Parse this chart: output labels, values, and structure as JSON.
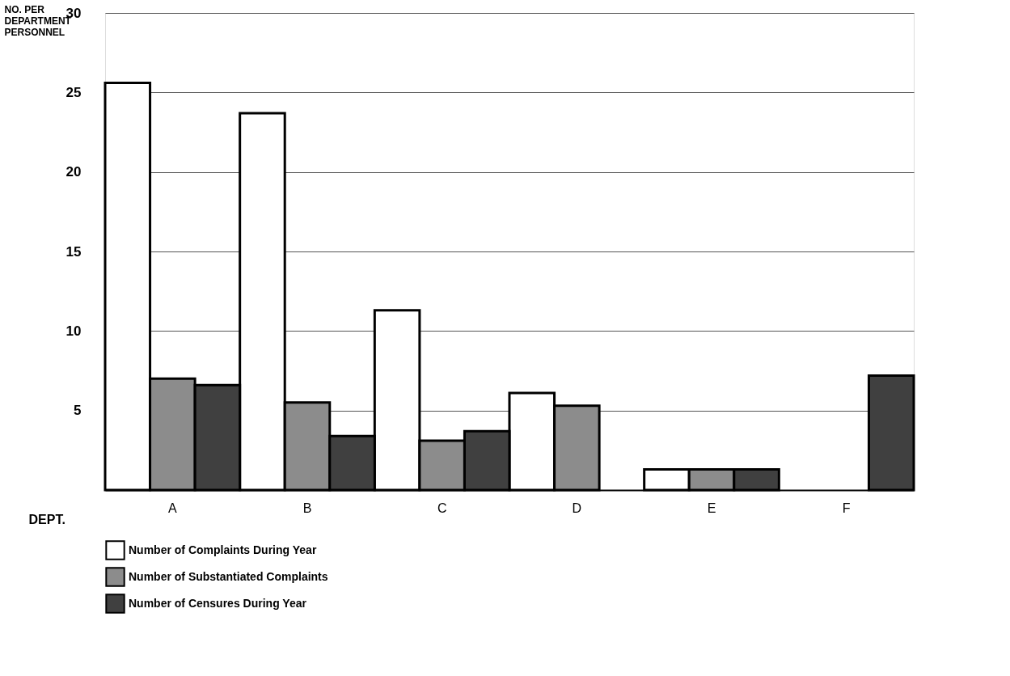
{
  "chart_data": {
    "type": "bar",
    "xlabel": "DEPT.",
    "ylabel": "NO. PER DEPARTMENT PERSONNEL",
    "categories": [
      "A",
      "B",
      "C",
      "D",
      "E",
      "F"
    ],
    "series": [
      {
        "name": "Number of Complaints During Year",
        "color": "#ffffff",
        "values": [
          25.6,
          23.7,
          11.3,
          6.1,
          1.3,
          null
        ]
      },
      {
        "name": "Number of Substantiated Complaints",
        "color": "#8c8c8c",
        "values": [
          7.0,
          5.5,
          3.1,
          5.3,
          1.3,
          null
        ]
      },
      {
        "name": "Number of Censures During Year",
        "color": "#404040",
        "values": [
          6.6,
          3.4,
          3.7,
          null,
          1.3,
          7.2
        ]
      }
    ],
    "ylim": [
      0,
      30
    ],
    "yticks": [
      5,
      10,
      15,
      20,
      25,
      30
    ],
    "grid": "y",
    "legend": "bottom left"
  }
}
